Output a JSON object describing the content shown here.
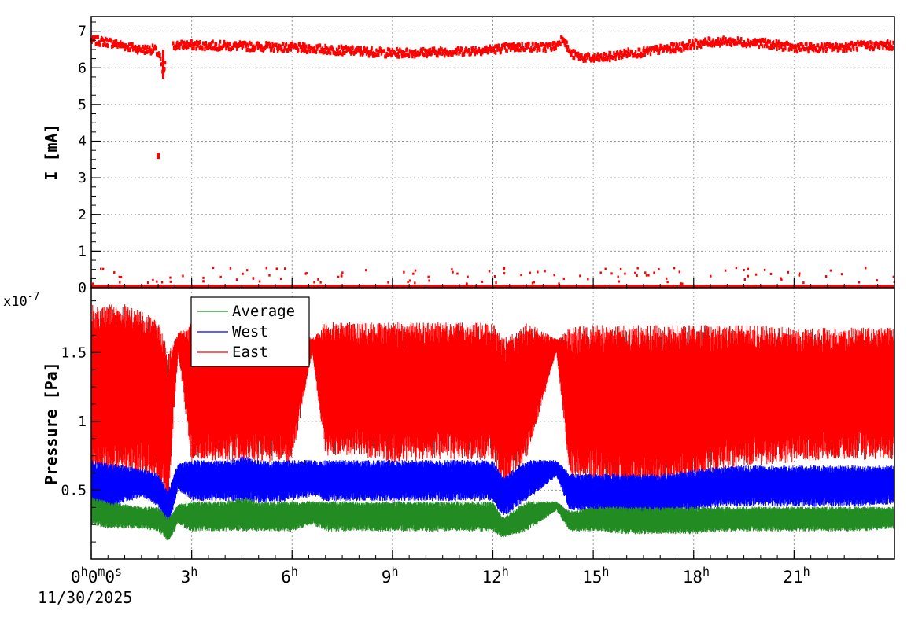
{
  "chart_data": [
    {
      "type": "scatter",
      "title": "",
      "xlabel": "",
      "ylabel": "I [mA]",
      "x_unit": "hours since 11/30/2025 00:00:00",
      "xlim": [
        0,
        24
      ],
      "ylim": [
        0,
        7.4
      ],
      "grid": true,
      "x_tick_labels": [
        "0h0m0s",
        "3h",
        "6h",
        "9h",
        "12h",
        "15h",
        "18h",
        "21h"
      ],
      "x_ticks": [
        0,
        3,
        6,
        9,
        12,
        15,
        18,
        21
      ],
      "y_ticks": [
        0,
        1,
        2,
        3,
        4,
        5,
        6,
        7
      ],
      "y_tick_labels": [
        "0",
        "1",
        "2",
        "3",
        "4",
        "5",
        "6",
        "7"
      ],
      "color": "#ff0000",
      "series": [
        {
          "name": "",
          "x": [
            0,
            0.5,
            1.0,
            1.5,
            1.9,
            2.05,
            2.15,
            2.3,
            2.5,
            3,
            4,
            5,
            6,
            7,
            8,
            9,
            10,
            11,
            12,
            12.5,
            13,
            13.5,
            13.9,
            14.1,
            14.3,
            14.6,
            15,
            15.5,
            16,
            16.5,
            17,
            17.5,
            18,
            18.5,
            19,
            20,
            21,
            22,
            23,
            24
          ],
          "values": [
            6.75,
            6.7,
            6.6,
            6.5,
            6.5,
            6.3,
            5.8,
            6.5,
            6.62,
            6.62,
            6.6,
            6.58,
            6.55,
            6.5,
            6.45,
            6.4,
            6.42,
            6.45,
            6.5,
            6.55,
            6.58,
            6.55,
            6.6,
            6.85,
            6.4,
            6.3,
            6.25,
            6.3,
            6.4,
            6.42,
            6.5,
            6.55,
            6.65,
            6.7,
            6.72,
            6.68,
            6.55,
            6.55,
            6.6,
            6.62
          ]
        },
        {
          "name": "",
          "x": [
            2.0
          ],
          "values": [
            3.6
          ]
        }
      ]
    },
    {
      "type": "line",
      "title": "",
      "xlabel": "",
      "ylabel": "Pressure [Pa]",
      "y_multiplier": "x10-7",
      "x_unit": "hours since 11/30/2025 00:00:00",
      "xlim": [
        0,
        24
      ],
      "ylim": [
        0.0,
        1.97
      ],
      "grid": true,
      "legend_position": "top-left",
      "x_tick_labels": [
        "0h0m0s",
        "3h",
        "6h",
        "9h",
        "12h",
        "15h",
        "18h",
        "21h"
      ],
      "x_ticks": [
        0,
        3,
        6,
        9,
        12,
        15,
        18,
        21
      ],
      "y_ticks": [
        0.5,
        1,
        1.5
      ],
      "y_tick_labels": [
        "0.5",
        "1",
        "1.5"
      ],
      "x": [
        0,
        0.5,
        1.0,
        1.5,
        2.0,
        2.3,
        2.6,
        3,
        4,
        4.6,
        5,
        6,
        6.6,
        7,
        8,
        9,
        10,
        11,
        12,
        12.3,
        13,
        13.9,
        14.3,
        15,
        16,
        17,
        18,
        19,
        20,
        21,
        22,
        23,
        24
      ],
      "series": [
        {
          "name": "Average",
          "color": "#228b22",
          "min": [
            0.25,
            0.22,
            0.22,
            0.22,
            0.2,
            0.12,
            0.25,
            0.2,
            0.2,
            0.2,
            0.2,
            0.2,
            0.25,
            0.2,
            0.2,
            0.2,
            0.2,
            0.2,
            0.2,
            0.15,
            0.2,
            0.35,
            0.2,
            0.2,
            0.18,
            0.18,
            0.18,
            0.2,
            0.2,
            0.2,
            0.2,
            0.2,
            0.22
          ],
          "max": [
            0.45,
            0.42,
            0.4,
            0.38,
            0.38,
            0.3,
            0.4,
            0.42,
            0.42,
            0.45,
            0.42,
            0.42,
            0.42,
            0.42,
            0.42,
            0.42,
            0.42,
            0.42,
            0.42,
            0.3,
            0.42,
            0.42,
            0.35,
            0.38,
            0.38,
            0.38,
            0.38,
            0.38,
            0.38,
            0.38,
            0.38,
            0.38,
            0.38
          ]
        },
        {
          "name": "West",
          "color": "#0000ff",
          "min": [
            0.35,
            0.35,
            0.4,
            0.45,
            0.38,
            0.22,
            0.5,
            0.42,
            0.42,
            0.42,
            0.4,
            0.42,
            0.45,
            0.42,
            0.42,
            0.42,
            0.42,
            0.42,
            0.42,
            0.3,
            0.42,
            0.6,
            0.35,
            0.35,
            0.32,
            0.32,
            0.35,
            0.38,
            0.38,
            0.38,
            0.38,
            0.38,
            0.4
          ],
          "max": [
            0.72,
            0.7,
            0.68,
            0.66,
            0.62,
            0.5,
            0.7,
            0.72,
            0.72,
            0.75,
            0.72,
            0.72,
            0.72,
            0.72,
            0.72,
            0.72,
            0.72,
            0.72,
            0.72,
            0.6,
            0.72,
            0.72,
            0.62,
            0.62,
            0.62,
            0.62,
            0.65,
            0.68,
            0.68,
            0.68,
            0.68,
            0.68,
            0.68
          ]
        },
        {
          "name": "East",
          "color": "#ff0000",
          "min": [
            0.6,
            0.6,
            0.6,
            0.6,
            0.55,
            0.4,
            1.5,
            0.7,
            0.7,
            0.7,
            0.7,
            0.7,
            1.5,
            0.75,
            0.75,
            0.7,
            0.72,
            0.72,
            0.72,
            0.5,
            0.72,
            1.5,
            0.6,
            0.55,
            0.5,
            0.5,
            0.55,
            0.65,
            0.68,
            0.7,
            0.72,
            0.72,
            0.72
          ],
          "max": [
            1.85,
            1.85,
            1.85,
            1.8,
            1.75,
            1.5,
            1.65,
            1.72,
            1.72,
            1.72,
            1.72,
            1.72,
            1.6,
            1.72,
            1.72,
            1.72,
            1.72,
            1.72,
            1.72,
            1.6,
            1.72,
            1.6,
            1.68,
            1.7,
            1.7,
            1.7,
            1.7,
            1.7,
            1.7,
            1.68,
            1.68,
            1.68,
            1.68
          ]
        }
      ]
    }
  ],
  "date_label": "11/30/2025"
}
